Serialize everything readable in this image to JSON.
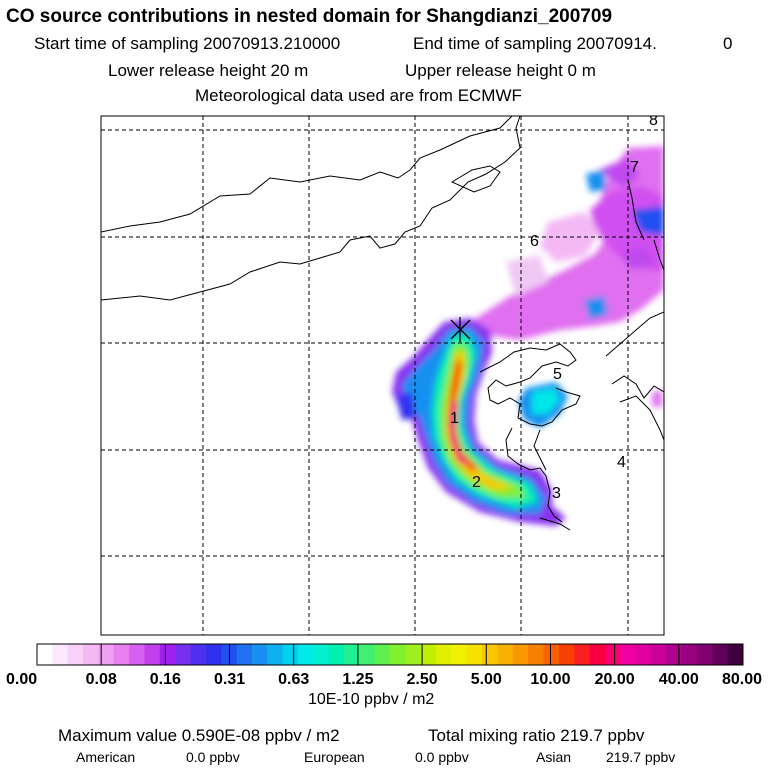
{
  "header": {
    "title": "CO  source contributions in nested domain for Shangdianzi_200709",
    "start_label": "Start time of sampling 20070913.210000",
    "end_label": "End time of sampling 20070914.",
    "end_suffix": "0",
    "lower_release": "Lower release height   20 m",
    "upper_release": "Upper release height    0 m",
    "met_source": "Meteorological data used are from ECMWF"
  },
  "chart_data": {
    "type": "heatmap",
    "title": "CO  source contributions in nested domain for Shangdianzi_200709",
    "colorbar_unit": "10E-10 ppbv / m2",
    "colorbar_ticks": [
      "0.00",
      "0.08",
      "0.16",
      "0.31",
      "0.63",
      "1.25",
      "2.50",
      "5.00",
      "10.00",
      "20.00",
      "40.00",
      "80.00"
    ],
    "colorbar_colors": [
      "#ffffff",
      "#fce8fc",
      "#f8d0f8",
      "#f4b8f4",
      "#f0a0f0",
      "#e880f0",
      "#d860f0",
      "#c040f0",
      "#a020f0",
      "#7830f0",
      "#5030f0",
      "#3030f0",
      "#2050f0",
      "#2070f0",
      "#1890f0",
      "#10b0f0",
      "#00d0f0",
      "#00e8e8",
      "#00f0d0",
      "#00f0b0",
      "#20f090",
      "#40f070",
      "#60f050",
      "#80f030",
      "#a0f020",
      "#c0f000",
      "#e0f000",
      "#f0f000",
      "#f8e000",
      "#f8c800",
      "#f8b000",
      "#f89800",
      "#f88000",
      "#f86000",
      "#f84000",
      "#f82020",
      "#f80040",
      "#f80070",
      "#f000a0",
      "#e000a0",
      "#c80098",
      "#b00090",
      "#980080",
      "#800070",
      "#600058",
      "#400040"
    ],
    "numbered_points": [
      "1",
      "2",
      "3",
      "4",
      "5",
      "6",
      "7",
      "8"
    ],
    "release_marker": "Shangdianzi",
    "grid": true
  },
  "footer": {
    "max_value": "Maximum value  0.590E-08 ppbv / m2",
    "total_mixing": "Total mixing ratio     219.7 ppbv",
    "american_label": "American",
    "american_value": "0.0 ppbv",
    "european_label": "European",
    "european_value": "0.0 ppbv",
    "asian_label": "Asian",
    "asian_value": "219.7 ppbv"
  }
}
